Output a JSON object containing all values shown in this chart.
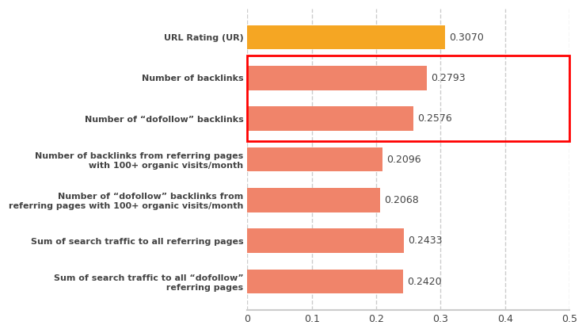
{
  "categories": [
    "Sum of search traffic to all “dofollow”\n referring pages",
    "Sum of search traffic to all referring pages",
    "Number of “dofollow” backlinks from\nreferring pages with 100+ organic visits/month",
    "Number of backlinks from referring pages\n with 100+ organic visits/month",
    "Number of “dofollow” backlinks",
    "Number of backlinks",
    "URL Rating (UR)"
  ],
  "values": [
    0.242,
    0.2433,
    0.2068,
    0.2096,
    0.2576,
    0.2793,
    0.307
  ],
  "bar_colors": [
    "#F0846A",
    "#F0846A",
    "#F0846A",
    "#F0846A",
    "#F0846A",
    "#F0846A",
    "#F5A623"
  ],
  "value_labels": [
    "0.2420",
    "0.2433",
    "0.2068",
    "0.2096",
    "0.2576",
    "0.2793",
    "0.3070"
  ],
  "xlim": [
    0,
    0.5
  ],
  "xticks": [
    0,
    0.1,
    0.2,
    0.3,
    0.4,
    0.5
  ],
  "bar_height": 0.6,
  "highlight_indices": [
    5,
    6
  ],
  "highlight_color": "red",
  "highlight_linewidth": 2.0,
  "background_color": "#ffffff",
  "text_color": "#444444",
  "value_fontsize": 9,
  "label_fontsize": 8.0,
  "tick_fontsize": 9,
  "grid_color": "#cccccc"
}
